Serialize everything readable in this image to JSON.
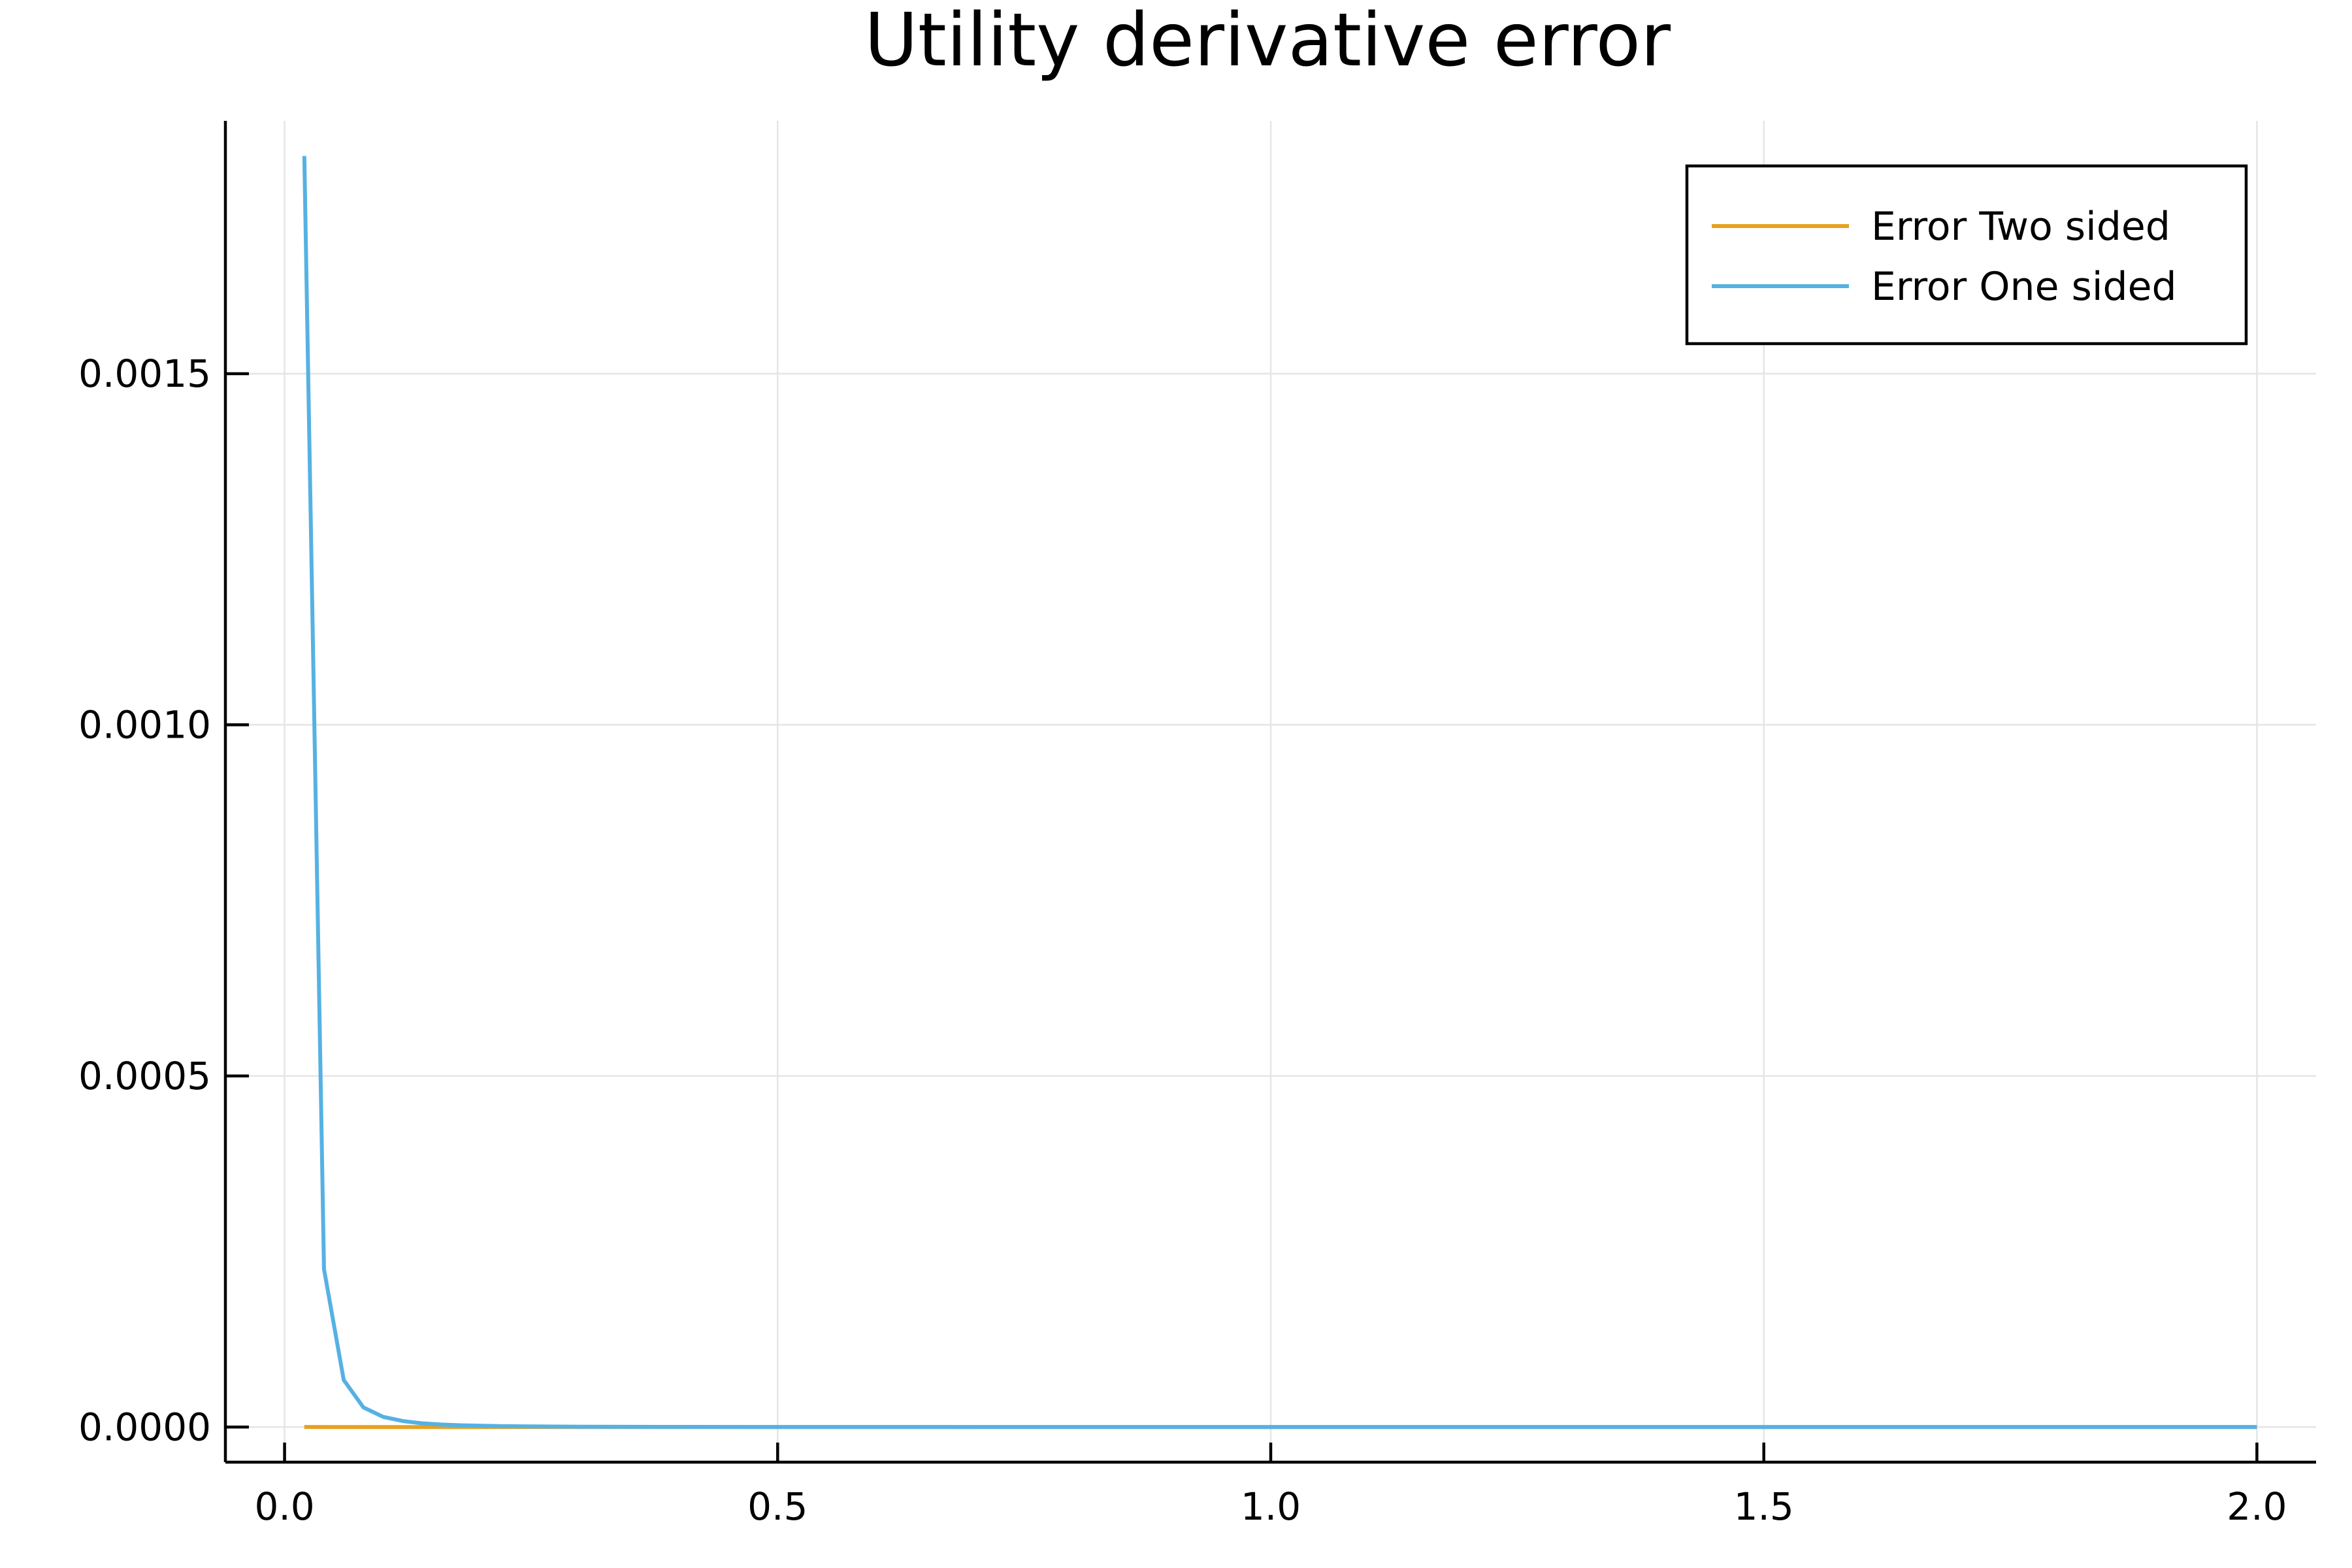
{
  "chart_data": {
    "type": "line",
    "title": "Utility derivative error",
    "xlabel": "",
    "ylabel": "",
    "xlim": [
      -0.06,
      2.06
    ],
    "ylim": [
      -5e-05,
      0.00186
    ],
    "x_ticks": [
      {
        "value": 0.0,
        "label": "0.0"
      },
      {
        "value": 0.5,
        "label": "0.5"
      },
      {
        "value": 1.0,
        "label": "1.0"
      },
      {
        "value": 1.5,
        "label": "1.5"
      },
      {
        "value": 2.0,
        "label": "2.0"
      }
    ],
    "y_ticks": [
      {
        "value": 0.0,
        "label": "0.0000"
      },
      {
        "value": 0.0005,
        "label": "0.0005"
      },
      {
        "value": 0.001,
        "label": "0.0010"
      },
      {
        "value": 0.0015,
        "label": "0.0015"
      }
    ],
    "grid": true,
    "legend_position": "top-right",
    "series": [
      {
        "name": "Error Two sided",
        "color": "#e6a11f",
        "x": [
          0.02,
          0.04,
          0.06,
          0.08,
          0.1,
          0.12,
          0.14,
          0.16,
          0.18,
          0.2,
          0.25,
          0.3,
          0.4,
          0.5,
          0.75,
          1.0,
          1.25,
          1.5,
          1.75,
          2.0
        ],
        "y": [
          1e-07,
          1e-08,
          0.0,
          0.0,
          0.0,
          0.0,
          0.0,
          0.0,
          0.0,
          0.0,
          0.0,
          0.0,
          0.0,
          0.0,
          0.0,
          0.0,
          0.0,
          0.0,
          0.0,
          0.0
        ]
      },
      {
        "name": "Error One sided",
        "color": "#56b1e3",
        "x": [
          0.02,
          0.04,
          0.06,
          0.08,
          0.1,
          0.12,
          0.14,
          0.16,
          0.18,
          0.2,
          0.22,
          0.25,
          0.3,
          0.35,
          0.4,
          0.5,
          0.75,
          1.0,
          1.25,
          1.5,
          1.75,
          2.0
        ],
        "y": [
          0.00181,
          0.000225,
          6.7e-05,
          2.8e-05,
          1.45e-05,
          8.5e-06,
          5.3e-06,
          3.5e-06,
          2.5e-06,
          1.8e-06,
          1.3e-06,
          9e-07,
          5e-07,
          3e-07,
          2e-07,
          1e-07,
          3e-08,
          1e-08,
          0.0,
          0.0,
          0.0,
          0.0
        ]
      }
    ]
  }
}
